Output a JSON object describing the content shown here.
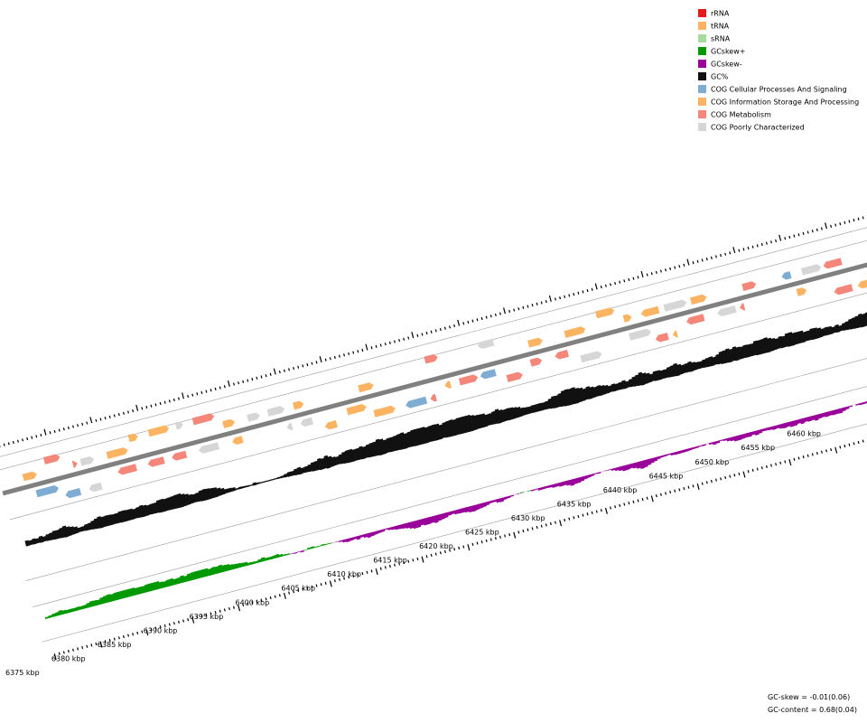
{
  "legend": [
    {
      "label": "rRNA",
      "color": "#e31a1c"
    },
    {
      "label": "tRNA",
      "color": "#fdb462"
    },
    {
      "label": "sRNA",
      "color": "#a6dba0"
    },
    {
      "label": "GCskew+",
      "color": "#009900"
    },
    {
      "label": "GCskew-",
      "color": "#990099"
    },
    {
      "label": "GC%",
      "color": "#111111"
    },
    {
      "label": "COG Cellular Processes And Signaling",
      "color": "#7eacd3"
    },
    {
      "label": "COG Information Storage And Processing",
      "color": "#fdb462"
    },
    {
      "label": "COG Metabolism",
      "color": "#f4867a"
    },
    {
      "label": "COG Poorly Characterized",
      "color": "#d6d6d6"
    }
  ],
  "ruler_labels": [
    "6375 kbp",
    "6380 kbp",
    "6385 kbp",
    "6390 kbp",
    "6395 kbp",
    "6400 kbp",
    "6405 kbp",
    "6410 kbp",
    "6415 kbp",
    "6420 kbp",
    "6425 kbp",
    "6430 kbp",
    "6435 kbp",
    "6440 kbp",
    "6445 kbp",
    "6450 kbp",
    "6455 kbp",
    "6460 kbp"
  ],
  "footer": {
    "gc_skew": "GC-skew = -0.01(0.06)",
    "gc_content": "GC-content = 0.68(0.04)"
  }
}
